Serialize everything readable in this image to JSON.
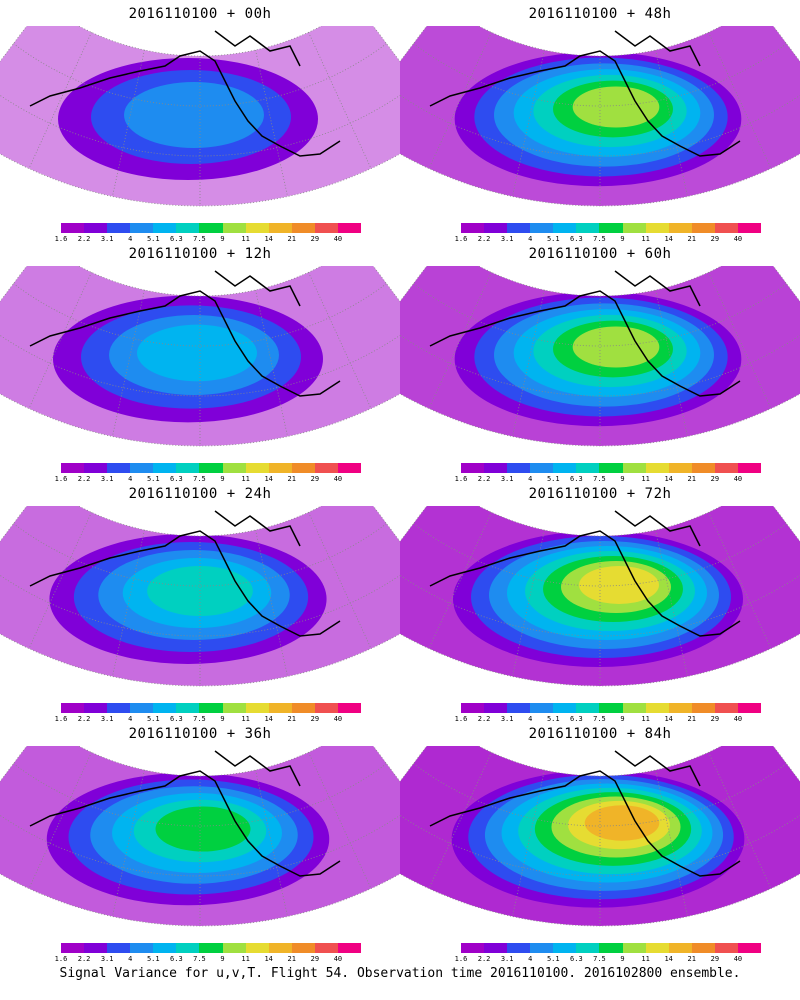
{
  "panels": [
    {
      "title": "2016110100 + 00h",
      "level": 0.15
    },
    {
      "title": "2016110100 + 48h",
      "level": 0.55
    },
    {
      "title": "2016110100 + 12h",
      "level": 0.25
    },
    {
      "title": "2016110100 + 60h",
      "level": 0.6
    },
    {
      "title": "2016110100 + 24h",
      "level": 0.35
    },
    {
      "title": "2016110100 + 72h",
      "level": 0.7
    },
    {
      "title": "2016110100 + 36h",
      "level": 0.45
    },
    {
      "title": "2016110100 + 84h",
      "level": 0.75
    }
  ],
  "colorbar": {
    "labels": [
      "1.6",
      "2.2",
      "3.1",
      "4",
      "5.1",
      "6.3",
      "7.5",
      "9",
      "11",
      "14",
      "21",
      "29",
      "40"
    ],
    "colors": [
      "#a000c8",
      "#8000d8",
      "#2e4cf0",
      "#1e8cf0",
      "#00b4f0",
      "#00d0c0",
      "#00d040",
      "#a0e040",
      "#e6dc32",
      "#f0b428",
      "#f08c28",
      "#f05050",
      "#f00082"
    ]
  },
  "footer": "Signal Variance for u,v,T. Flight 54. Observation time 2016110100. 2016102800 ensemble."
}
